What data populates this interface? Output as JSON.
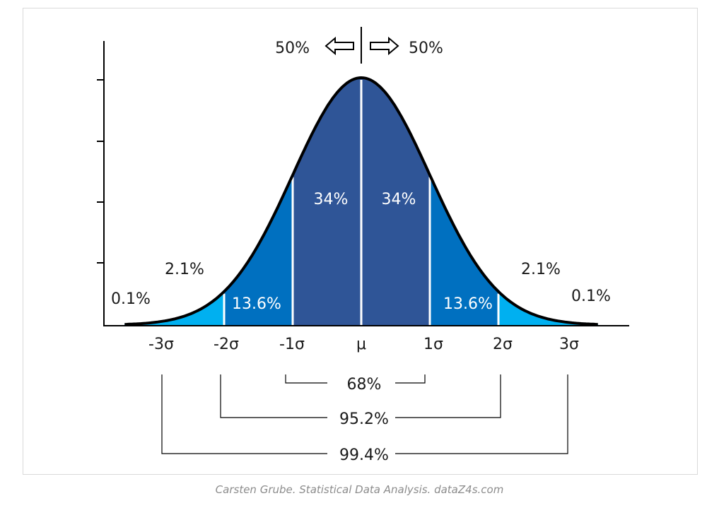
{
  "chart_data": {
    "type": "area",
    "distribution": "normal",
    "x_ticks": [
      "-3σ",
      "-2σ",
      "-1σ",
      "μ",
      "1σ",
      "2σ",
      "3σ"
    ],
    "regions": [
      {
        "from": -4,
        "to": -3,
        "percent": "0.1%",
        "color": "#00b0f0"
      },
      {
        "from": -3,
        "to": -2,
        "percent": "2.1%",
        "color": "#00b0f0"
      },
      {
        "from": -2,
        "to": -1,
        "percent": "13.6%",
        "color": "#0070c0"
      },
      {
        "from": -1,
        "to": 0,
        "percent": "34%",
        "color": "#2f5597"
      },
      {
        "from": 0,
        "to": 1,
        "percent": "34%",
        "color": "#2f5597"
      },
      {
        "from": 1,
        "to": 2,
        "percent": "13.6%",
        "color": "#0070c0"
      },
      {
        "from": 2,
        "to": 3,
        "percent": "2.1%",
        "color": "#00b0f0"
      },
      {
        "from": 3,
        "to": 4,
        "percent": "0.1%",
        "color": "#00b0f0"
      }
    ],
    "halves": {
      "left": "50%",
      "right": "50%"
    },
    "ranges": [
      {
        "from": -1,
        "to": 1,
        "label": "68%"
      },
      {
        "from": -2,
        "to": 2,
        "label": "95.2%"
      },
      {
        "from": -3,
        "to": 3,
        "label": "99.4%"
      }
    ],
    "xlim": [
      -3.45,
      3.45
    ],
    "y_ticks": 4
  },
  "caption": "Carsten Grube. Statistical Data Analysis. dataZ4s.com"
}
